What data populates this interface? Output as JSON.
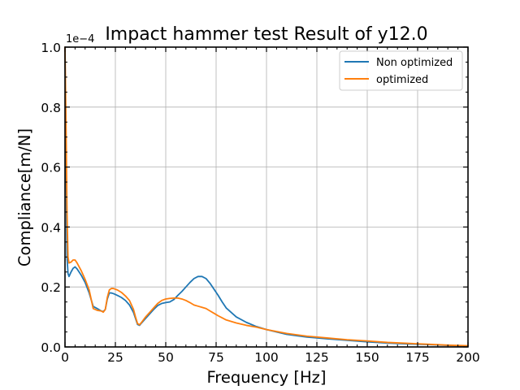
{
  "chart_data": {
    "type": "line",
    "title": "Impact hammer test Result of y12.0",
    "xlabel": "Frequency [Hz]",
    "ylabel": "Compliance[m/N]",
    "y_scale_label": "1e−4",
    "y_scale": 0.0001,
    "xlim": [
      0,
      200
    ],
    "ylim": [
      0,
      1.0
    ],
    "grid": true,
    "legend_position": "top-right",
    "x_ticks": [
      0,
      25,
      50,
      75,
      100,
      125,
      150,
      175,
      200
    ],
    "x_tick_labels": [
      "0",
      "25",
      "50",
      "75",
      "100",
      "125",
      "150",
      "175",
      "200"
    ],
    "y_ticks": [
      0.0,
      0.2,
      0.4,
      0.6,
      0.8,
      1.0
    ],
    "y_tick_labels": [
      "0.0",
      "0.2",
      "0.4",
      "0.6",
      "0.8",
      "1.0"
    ],
    "series": [
      {
        "name": "Non optimized",
        "color": "#1f77b4",
        "x": [
          0,
          0.5,
          1,
          1.5,
          2,
          3,
          4,
          5,
          6,
          8,
          10,
          12,
          14,
          16,
          18,
          19,
          20,
          21,
          22,
          23,
          24,
          26,
          28,
          30,
          32,
          34,
          35,
          36,
          37,
          38,
          40,
          42,
          44,
          46,
          48,
          50,
          52,
          54,
          56,
          58,
          60,
          62,
          64,
          66,
          68,
          70,
          72,
          74,
          76,
          78,
          80,
          85,
          90,
          95,
          100,
          110,
          120,
          130,
          140,
          150,
          160,
          170,
          180,
          190,
          200
        ],
        "y": [
          1.0,
          0.6,
          0.3,
          0.245,
          0.235,
          0.25,
          0.262,
          0.267,
          0.26,
          0.24,
          0.215,
          0.18,
          0.135,
          0.128,
          0.12,
          0.118,
          0.125,
          0.16,
          0.18,
          0.18,
          0.178,
          0.172,
          0.165,
          0.155,
          0.14,
          0.115,
          0.095,
          0.075,
          0.072,
          0.08,
          0.095,
          0.11,
          0.125,
          0.138,
          0.145,
          0.148,
          0.15,
          0.158,
          0.172,
          0.185,
          0.2,
          0.215,
          0.228,
          0.235,
          0.235,
          0.228,
          0.212,
          0.192,
          0.172,
          0.15,
          0.13,
          0.1,
          0.082,
          0.068,
          0.058,
          0.042,
          0.033,
          0.027,
          0.022,
          0.017,
          0.013,
          0.01,
          0.008,
          0.005,
          0.003
        ]
      },
      {
        "name": "optimized",
        "color": "#ff7f0e",
        "x": [
          0,
          0.5,
          1,
          1.5,
          2,
          3,
          4,
          5,
          6,
          8,
          10,
          12,
          14,
          16,
          18,
          19,
          20,
          21,
          22,
          23,
          24,
          26,
          28,
          30,
          32,
          34,
          35,
          36,
          37,
          38,
          40,
          42,
          44,
          46,
          48,
          50,
          52,
          54,
          56,
          58,
          60,
          62,
          64,
          66,
          68,
          70,
          72,
          74,
          76,
          78,
          80,
          85,
          90,
          95,
          100,
          110,
          120,
          130,
          140,
          150,
          160,
          170,
          180,
          190,
          200
        ],
        "y": [
          1.0,
          0.75,
          0.45,
          0.3,
          0.28,
          0.283,
          0.29,
          0.29,
          0.28,
          0.255,
          0.225,
          0.19,
          0.128,
          0.122,
          0.12,
          0.116,
          0.125,
          0.165,
          0.19,
          0.195,
          0.195,
          0.19,
          0.182,
          0.17,
          0.155,
          0.125,
          0.1,
          0.078,
          0.074,
          0.082,
          0.1,
          0.115,
          0.13,
          0.145,
          0.155,
          0.16,
          0.162,
          0.163,
          0.163,
          0.16,
          0.155,
          0.148,
          0.14,
          0.136,
          0.132,
          0.128,
          0.12,
          0.112,
          0.104,
          0.097,
          0.09,
          0.08,
          0.072,
          0.066,
          0.058,
          0.045,
          0.036,
          0.03,
          0.024,
          0.02,
          0.015,
          0.012,
          0.009,
          0.006,
          0.004
        ]
      }
    ]
  }
}
